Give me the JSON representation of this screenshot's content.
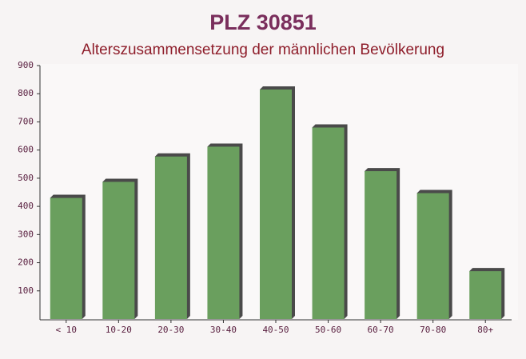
{
  "chart_data": {
    "type": "bar",
    "title": "PLZ 30851",
    "subtitle": "Alterszusammensetzung der männlichen Bevölkerung",
    "categories": [
      "< 10",
      "10-20",
      "20-30",
      "30-40",
      "40-50",
      "50-60",
      "60-70",
      "70-80",
      "80+"
    ],
    "values": [
      430,
      487,
      577,
      612,
      815,
      680,
      525,
      447,
      170
    ],
    "color": "#6a9f5e",
    "ylim": [
      0,
      900
    ],
    "yticks": [
      100,
      200,
      300,
      400,
      500,
      600,
      700,
      800,
      900
    ],
    "grid": false
  }
}
